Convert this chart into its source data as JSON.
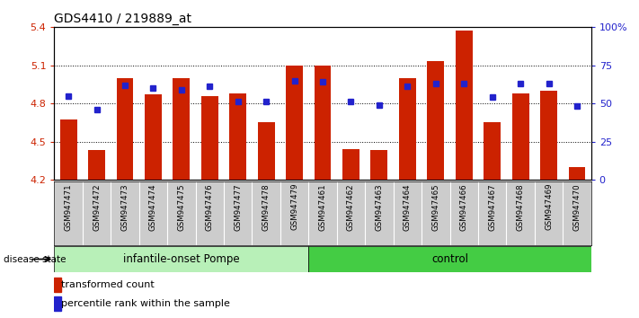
{
  "title": "GDS4410 / 219889_at",
  "samples": [
    "GSM947471",
    "GSM947472",
    "GSM947473",
    "GSM947474",
    "GSM947475",
    "GSM947476",
    "GSM947477",
    "GSM947478",
    "GSM947479",
    "GSM947461",
    "GSM947462",
    "GSM947463",
    "GSM947464",
    "GSM947465",
    "GSM947466",
    "GSM947467",
    "GSM947468",
    "GSM947469",
    "GSM947470"
  ],
  "transformed_count": [
    4.67,
    4.43,
    5.0,
    4.87,
    5.0,
    4.86,
    4.88,
    4.65,
    5.1,
    5.1,
    4.44,
    4.43,
    5.0,
    5.13,
    5.37,
    4.65,
    4.88,
    4.9,
    4.3
  ],
  "percentile_rank": [
    55,
    46,
    62,
    60,
    59,
    61,
    51,
    51,
    65,
    64,
    51,
    49,
    61,
    63,
    63,
    54,
    63,
    63,
    48
  ],
  "group1_count": 9,
  "group2_count": 10,
  "group1_label": "infantile-onset Pompe",
  "group2_label": "control",
  "group1_color": "#b8f0b8",
  "group2_color": "#44cc44",
  "ylim_left": [
    4.2,
    5.4
  ],
  "ylim_right": [
    0,
    100
  ],
  "yticks_left": [
    4.2,
    4.5,
    4.8,
    5.1,
    5.4
  ],
  "yticks_right": [
    0,
    25,
    50,
    75,
    100
  ],
  "bar_color": "#cc2200",
  "dot_color": "#2222cc",
  "tick_area_color": "#cccccc",
  "disease_state_label": "disease state",
  "legend_items": [
    "transformed count",
    "percentile rank within the sample"
  ]
}
